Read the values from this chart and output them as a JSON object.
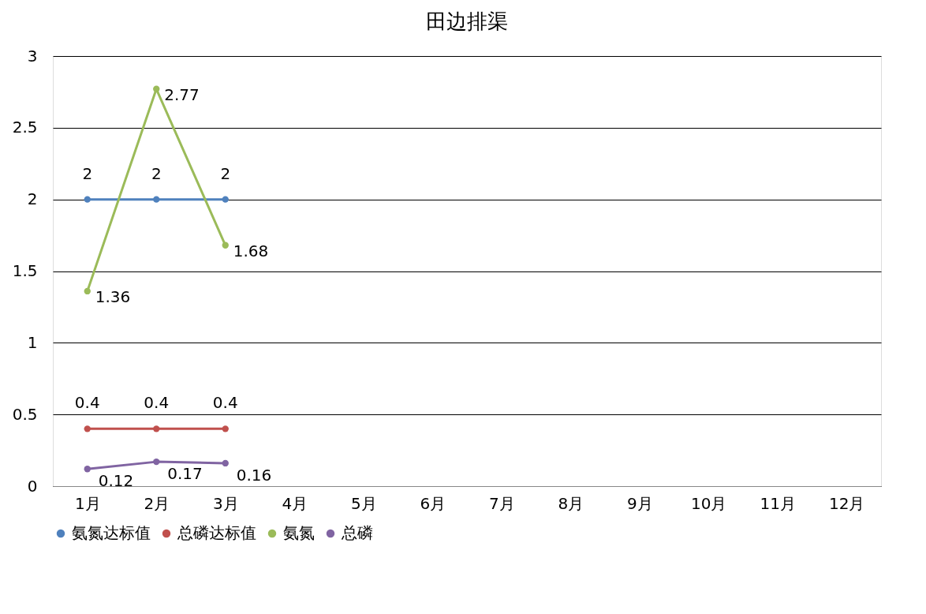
{
  "chart_data": {
    "type": "line",
    "title": "田边排渠",
    "categories": [
      "1月",
      "2月",
      "3月",
      "4月",
      "5月",
      "6月",
      "7月",
      "8月",
      "9月",
      "10月",
      "11月",
      "12月"
    ],
    "series": [
      {
        "name": "氨氮达标值",
        "color": "#4f81bd",
        "values": [
          2,
          2,
          2,
          null,
          null,
          null,
          null,
          null,
          null,
          null,
          null,
          null
        ]
      },
      {
        "name": "总磷达标值",
        "color": "#c0504d",
        "values": [
          0.4,
          0.4,
          0.4,
          null,
          null,
          null,
          null,
          null,
          null,
          null,
          null,
          null
        ]
      },
      {
        "name": "氨氮",
        "color": "#9bbb59",
        "values": [
          1.36,
          2.77,
          1.68,
          null,
          null,
          null,
          null,
          null,
          null,
          null,
          null,
          null
        ]
      },
      {
        "name": "总磷",
        "color": "#8064a2",
        "values": [
          0.12,
          0.17,
          0.16,
          null,
          null,
          null,
          null,
          null,
          null,
          null,
          null,
          null
        ]
      }
    ],
    "ylim": [
      0,
      3
    ],
    "yticks": [
      0,
      0.5,
      1,
      1.5,
      2,
      2.5,
      3
    ],
    "grid": "y",
    "legend": "bottom",
    "marker": "circle",
    "line_style": "solid",
    "data_labels": true
  }
}
